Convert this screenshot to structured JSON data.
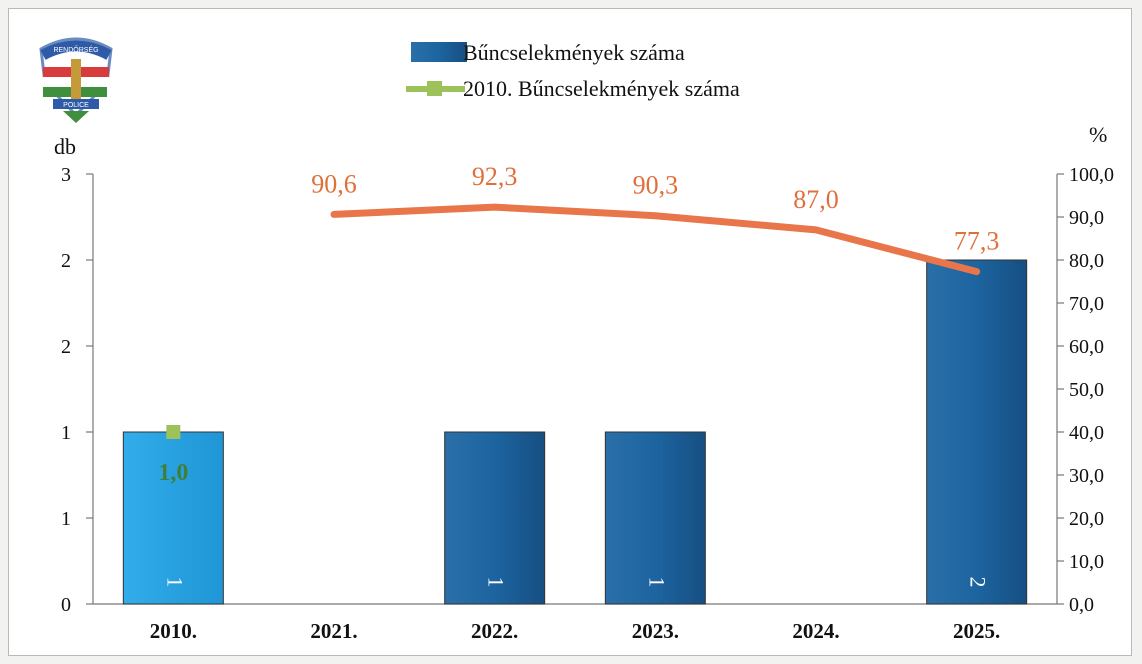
{
  "chart_data": {
    "type": "bar",
    "categories": [
      "2010.",
      "2021.",
      "2022.",
      "2023.",
      "2024.",
      "2025."
    ],
    "series": [
      {
        "name": "Bűncselekmények száma",
        "type": "bar",
        "axis": "left",
        "values": [
          1,
          0,
          1,
          1,
          0,
          2
        ],
        "data_labels": [
          "1",
          "",
          "1",
          "1",
          "",
          "2"
        ],
        "color": "#1f67a3",
        "highlight_color": "#29a4e0"
      },
      {
        "name": "2010. Bűncselekmények száma",
        "type": "marker",
        "axis": "left",
        "values": [
          1,
          null,
          null,
          null,
          null,
          null
        ],
        "data_labels": [
          "1,0",
          "",
          "",
          "",
          "",
          ""
        ],
        "color": "#9dc25a"
      },
      {
        "name": "",
        "type": "line",
        "axis": "right",
        "values": [
          null,
          90.6,
          92.3,
          90.3,
          87.0,
          77.3
        ],
        "data_labels": [
          "",
          "90,6",
          "92,3",
          "90,3",
          "87,0",
          "77,3"
        ],
        "color": "#e8764a"
      }
    ],
    "left_axis": {
      "label": "db",
      "ylim": [
        0,
        2.5
      ],
      "ticks": [
        0,
        0.5,
        1,
        1.5,
        2,
        2.5
      ],
      "tick_labels": [
        "0",
        "1",
        "1",
        "2",
        "2",
        "3"
      ]
    },
    "right_axis": {
      "label": "%",
      "ylim": [
        0,
        100
      ],
      "ticks": [
        0,
        10,
        20,
        30,
        40,
        50,
        60,
        70,
        80,
        90,
        100
      ],
      "tick_labels": [
        "0,0",
        "10,0",
        "20,0",
        "30,0",
        "40,0",
        "50,0",
        "60,0",
        "70,0",
        "80,0",
        "90,0",
        "100,0"
      ]
    },
    "legend": {
      "position": "top-center"
    },
    "grid": false
  },
  "logo": {
    "top_text": "RENDŐRSÉG",
    "bottom_text": "POLICE"
  }
}
